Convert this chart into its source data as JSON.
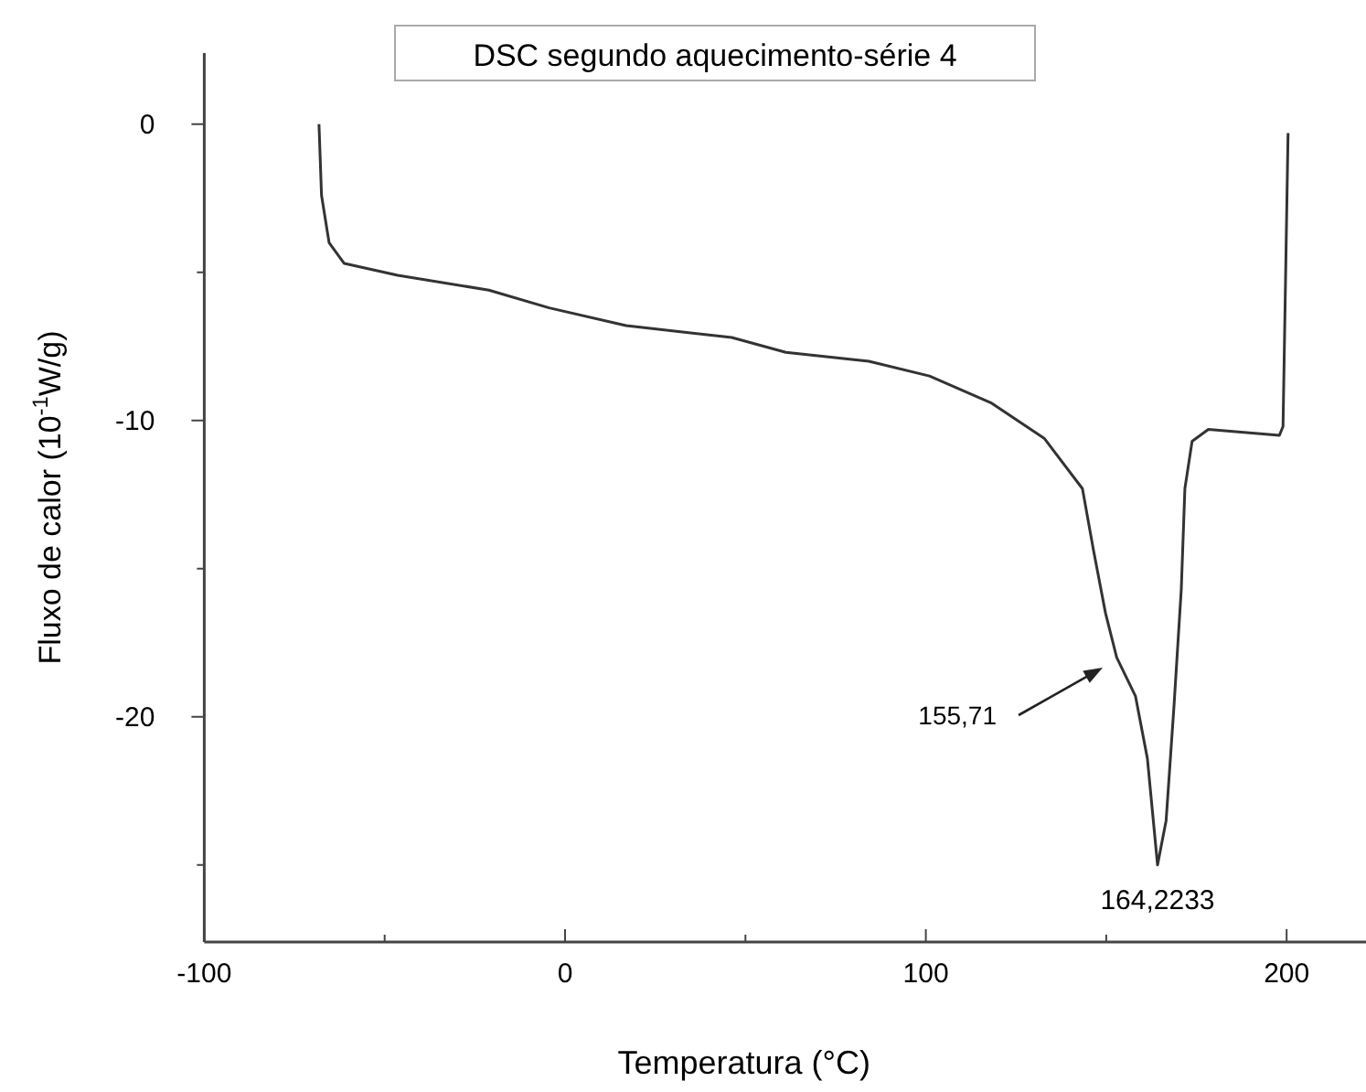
{
  "chart_data": {
    "type": "line",
    "title": "DSC segundo aquecimento-série 4",
    "xlabel": "Temperatura (°C)",
    "ylabel": "Fluxo de calor (10$^{-1}$W/g)",
    "xlim": [
      -100,
      222
    ],
    "xticks": [
      -100,
      {
        "value": -50,
        "label": null
      },
      0,
      {
        "value": 50,
        "label": null
      },
      100,
      {
        "value": 150,
        "label": null
      },
      200
    ],
    "ylim": [
      -27.6,
      2.4
    ],
    "yticks": [
      0,
      {
        "value": -5,
        "label": null
      },
      -10,
      {
        "value": -15,
        "label": null
      },
      -20,
      {
        "value": -25,
        "label": null
      }
    ],
    "line_style": "solid",
    "series": [
      {
        "color": "#333333",
        "x": [
          -68.2,
          -67.5,
          -65.4,
          -61.2,
          -46.4,
          -21.1,
          -4.4,
          16.9,
          46.2,
          61.2,
          84.2,
          101,
          118,
          132.8,
          143.4,
          146.5,
          149.8,
          152.9,
          158.1,
          161.4,
          164.2233,
          166.6,
          168.8,
          170.8,
          171.8,
          173.8,
          178.3,
          198,
          199,
          200.4
        ],
        "values": [
          0,
          -2.4,
          -4.0,
          -4.7,
          -5.1,
          -5.6,
          -6.2,
          -6.8,
          -7.2,
          -7.7,
          -8.0,
          -8.5,
          -9.4,
          -10.6,
          -12.3,
          -14.4,
          -16.5,
          -18.0,
          -19.3,
          -21.4,
          -25.0,
          -23.5,
          -19.6,
          -15.7,
          -12.3,
          -10.7,
          -10.3,
          -10.5,
          -10.2,
          -0.3
        ]
      }
    ],
    "annotations": [
      "155,71",
      {
        "text": "164,2233",
        "x": 164.2233,
        "y": -25.0
      }
    ]
  }
}
